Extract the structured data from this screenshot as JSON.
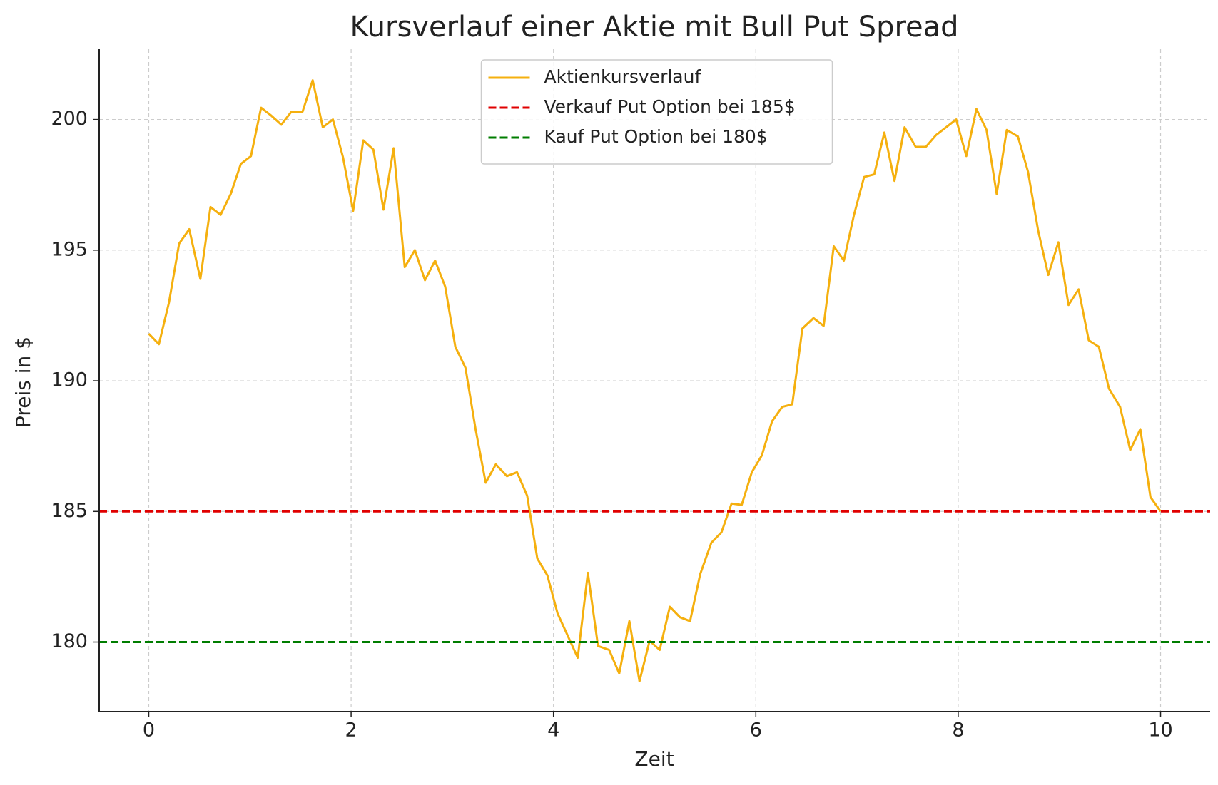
{
  "chart_data": {
    "type": "line",
    "title": "Kursverlauf einer Aktie mit Bull Put Spread",
    "x_label": "Zeit",
    "y_label": "Preis in $",
    "xlim": [
      -0.49,
      10.49
    ],
    "ylim": [
      177.34,
      202.69
    ],
    "xticks": [
      0,
      2,
      4,
      6,
      8,
      10
    ],
    "yticks": [
      180,
      185,
      190,
      195,
      200
    ],
    "grid": true,
    "legend": "upper center",
    "x": [
      0,
      0.1,
      0.2,
      0.3,
      0.4,
      0.51,
      0.61,
      0.71,
      0.81,
      0.91,
      1.01,
      1.11,
      1.21,
      1.31,
      1.41,
      1.52,
      1.62,
      1.72,
      1.82,
      1.92,
      2.02,
      2.12,
      2.22,
      2.32,
      2.42,
      2.53,
      2.63,
      2.73,
      2.83,
      2.93,
      3.03,
      3.13,
      3.23,
      3.33,
      3.43,
      3.54,
      3.64,
      3.74,
      3.84,
      3.94,
      4.04,
      4.14,
      4.24,
      4.34,
      4.44,
      4.55,
      4.65,
      4.75,
      4.85,
      4.95,
      5.05,
      5.15,
      5.25,
      5.35,
      5.45,
      5.56,
      5.66,
      5.76,
      5.86,
      5.96,
      6.06,
      6.16,
      6.26,
      6.36,
      6.46,
      6.57,
      6.67,
      6.77,
      6.87,
      6.97,
      7.07,
      7.17,
      7.27,
      7.37,
      7.47,
      7.58,
      7.68,
      7.78,
      7.88,
      7.98,
      8.08,
      8.18,
      8.28,
      8.38,
      8.48,
      8.59,
      8.69,
      8.79,
      8.89,
      8.99,
      9.09,
      9.19,
      9.29,
      9.39,
      9.49,
      9.6,
      9.7,
      9.8,
      9.9,
      10
    ],
    "series": [
      {
        "name": "Aktienkursverlauf",
        "color": "#f5b00f",
        "values": [
          191.8,
          191.4,
          193.0,
          195.25,
          195.8,
          193.9,
          196.65,
          196.35,
          197.15,
          198.3,
          198.6,
          200.45,
          200.15,
          199.8,
          200.3,
          200.3,
          201.5,
          199.7,
          200.0,
          198.55,
          196.5,
          199.2,
          198.85,
          196.55,
          198.9,
          194.35,
          195.0,
          193.85,
          194.6,
          193.6,
          191.3,
          190.5,
          188.15,
          186.1,
          186.8,
          186.35,
          186.5,
          185.6,
          183.2,
          182.55,
          181.1,
          180.25,
          179.4,
          182.65,
          179.85,
          179.7,
          178.8,
          180.8,
          178.5,
          180.05,
          179.7,
          181.35,
          180.95,
          180.8,
          182.6,
          183.8,
          184.2,
          185.3,
          185.25,
          186.5,
          187.15,
          188.45,
          189.0,
          189.1,
          192.0,
          192.4,
          192.1,
          195.15,
          194.6,
          196.35,
          197.8,
          197.9,
          199.5,
          197.65,
          199.7,
          198.95,
          198.95,
          199.4,
          199.7,
          200.0,
          198.6,
          200.4,
          199.6,
          197.15,
          199.6,
          199.35,
          198.0,
          195.75,
          194.05,
          195.3,
          192.9,
          193.5,
          191.55,
          191.3,
          189.7,
          189.0,
          187.35,
          188.15,
          185.55,
          185.0
        ]
      }
    ],
    "reference_lines": [
      {
        "name": "Verkauf Put Option bei 185$",
        "color": "#e00000",
        "y": 185,
        "linestyle": "dashed"
      },
      {
        "name": "Kauf Put Option bei 180$",
        "color": "#007d00",
        "y": 180,
        "linestyle": "dashed"
      }
    ]
  }
}
